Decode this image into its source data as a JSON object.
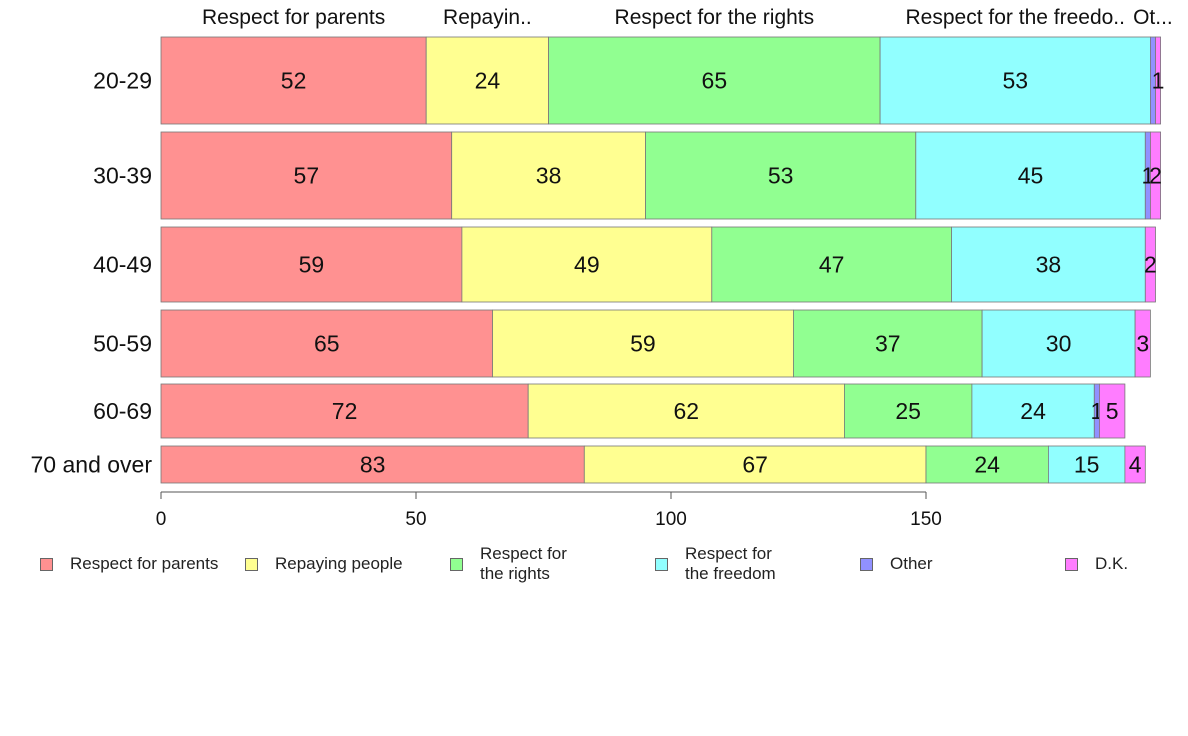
{
  "chart_data": {
    "type": "bar",
    "orientation": "horizontal",
    "stacked": true,
    "categories": [
      "20-29",
      "30-39",
      "40-49",
      "50-59",
      "60-69",
      "70 and over"
    ],
    "series": [
      {
        "name": "Respect for parents",
        "color": "#ff9191",
        "values": [
          52,
          57,
          59,
          65,
          72,
          83
        ]
      },
      {
        "name": "Repaying people",
        "color": "#ffff91",
        "values": [
          24,
          38,
          49,
          59,
          62,
          67
        ]
      },
      {
        "name": "Respect for the rights",
        "color": "#91ff91",
        "values": [
          65,
          53,
          47,
          37,
          25,
          24
        ]
      },
      {
        "name": "Respect for the freedom",
        "color": "#91ffff",
        "values": [
          53,
          45,
          38,
          30,
          24,
          15
        ]
      },
      {
        "name": "Other",
        "color": "#9191ff",
        "values": [
          1,
          1,
          0,
          0,
          1,
          0
        ]
      },
      {
        "name": "D.K.",
        "color": "#ff7dff",
        "values": [
          1,
          2,
          2,
          3,
          5,
          4
        ]
      }
    ],
    "data_labels": [
      [
        "52",
        "24",
        "65",
        "53",
        "",
        "1"
      ],
      [
        "57",
        "38",
        "53",
        "45",
        "1",
        "2"
      ],
      [
        "59",
        "49",
        "47",
        "38",
        "",
        "2"
      ],
      [
        "65",
        "59",
        "37",
        "30",
        "",
        "3"
      ],
      [
        "72",
        "62",
        "25",
        "24",
        "1",
        "5"
      ],
      [
        "83",
        "67",
        "24",
        "15",
        "",
        "4"
      ]
    ],
    "top_labels": [
      "Respect for parents",
      "Repayin..",
      "Respect for the rights",
      "Respect for the freedo..",
      "Ot..."
    ],
    "x_ticks": [
      0,
      50,
      100,
      150
    ],
    "xlim": [
      0,
      195
    ],
    "grid": false,
    "legend_position": "bottom",
    "legend": [
      {
        "label": "Respect for parents",
        "color": "#ff9191"
      },
      {
        "label": "Repaying people",
        "color": "#ffff91"
      },
      {
        "label": "Respect for\nthe rights",
        "color": "#91ff91"
      },
      {
        "label": "Respect for\nthe freedom",
        "color": "#91ffff"
      },
      {
        "label": "Other",
        "color": "#9191ff"
      },
      {
        "label": "D.K.",
        "color": "#ff7dff"
      }
    ]
  }
}
